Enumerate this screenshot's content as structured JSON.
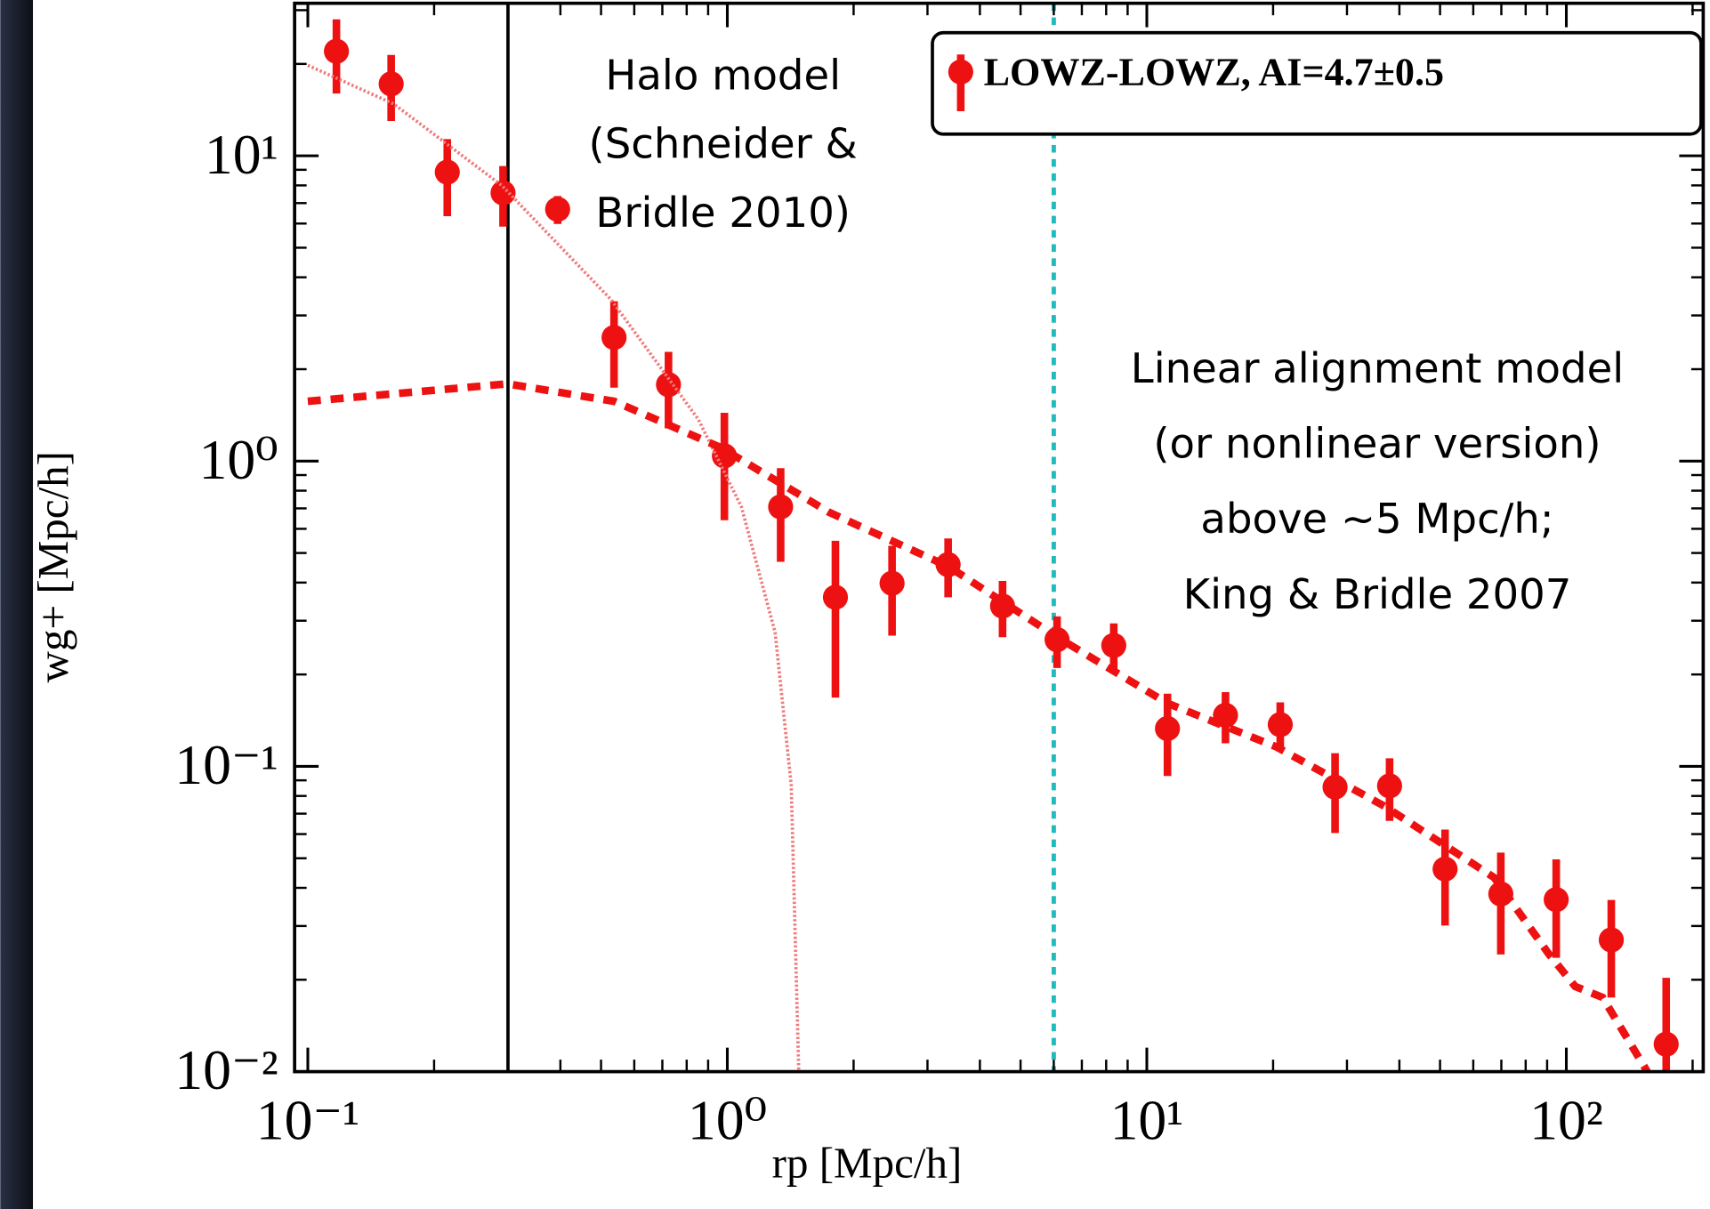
{
  "chart_data": {
    "type": "scatter",
    "x_label": "rp [Mpc/h]",
    "y_label": "wg+ [Mpc/h]",
    "xscale": "log",
    "yscale": "log",
    "xlim": [
      0.093,
      212
    ],
    "ylim": [
      0.01,
      31.6
    ],
    "xticks": [
      {
        "value": 0.1,
        "label": "10⁻¹"
      },
      {
        "value": 1,
        "label": "10⁰"
      },
      {
        "value": 10,
        "label": "10¹"
      },
      {
        "value": 100,
        "label": "10²"
      }
    ],
    "yticks": [
      {
        "value": 0.01,
        "label": "10⁻²"
      },
      {
        "value": 0.1,
        "label": "10⁻¹"
      },
      {
        "value": 1,
        "label": "10⁰"
      },
      {
        "value": 10,
        "label": "10¹"
      }
    ],
    "minor_ticks": true,
    "legend": "upper right",
    "series": [
      {
        "name": "LOWZ-LOWZ, AI=4.7±0.5",
        "color": "#ee1111",
        "kind": "errorbar",
        "x": [
          0.117,
          0.158,
          0.215,
          0.292,
          0.394,
          0.537,
          0.724,
          0.984,
          1.34,
          1.81,
          2.47,
          3.36,
          4.53,
          6.11,
          8.34,
          11.2,
          15.4,
          20.8,
          28.1,
          37.9,
          51.4,
          69.8,
          94.6,
          128,
          173
        ],
        "values": [
          22.0,
          17.2,
          8.84,
          7.56,
          6.68,
          2.54,
          1.78,
          1.04,
          0.708,
          0.358,
          0.398,
          0.458,
          0.335,
          0.26,
          0.249,
          0.133,
          0.147,
          0.137,
          0.0855,
          0.0863,
          0.0461,
          0.0382,
          0.0366,
          0.027,
          0.0123
        ],
        "yerr": [
          6,
          4.2,
          2.5,
          1.7,
          0.7,
          0.8,
          0.5,
          0.4,
          0.24,
          0.19,
          0.13,
          0.1,
          0.07,
          0.05,
          0.045,
          0.04,
          0.028,
          0.025,
          0.025,
          0.02,
          0.016,
          0.014,
          0.013,
          0.0095,
          0.008
        ]
      },
      {
        "kind": "line",
        "style": "dotted",
        "color": "#f07a7a",
        "x": [
          0.1,
          0.16,
          0.29,
          0.528,
          0.853,
          1.08,
          1.3,
          1.42,
          1.48
        ],
        "values": [
          19.8,
          14.8,
          8.0,
          3.38,
          1.37,
          0.708,
          0.275,
          0.0869,
          0.01
        ]
      },
      {
        "kind": "line",
        "style": "dashed",
        "color": "#ee1111",
        "x": [
          0.1,
          0.299,
          0.537,
          0.962,
          1.75,
          3.37,
          6.14,
          11.2,
          20.3,
          37.0,
          67.3,
          90.8,
          105,
          122,
          156
        ],
        "values": [
          1.57,
          1.79,
          1.57,
          1.11,
          0.679,
          0.451,
          0.264,
          0.161,
          0.116,
          0.0738,
          0.0432,
          0.0243,
          0.019,
          0.0175,
          0.01
        ]
      }
    ],
    "vlines": [
      {
        "x": 0.3,
        "color": "#000000",
        "style": "solid"
      },
      {
        "x": 6,
        "color": "#22bbbb",
        "style": "dotted"
      }
    ],
    "annotations": [
      {
        "lines": [
          "Halo model",
          "(Schneider &",
          "Bridle 2010)"
        ]
      },
      {
        "lines": [
          "Linear alignment model",
          "(or nonlinear version)",
          "above ~5 Mpc/h;",
          "King & Bridle 2007"
        ]
      }
    ]
  }
}
